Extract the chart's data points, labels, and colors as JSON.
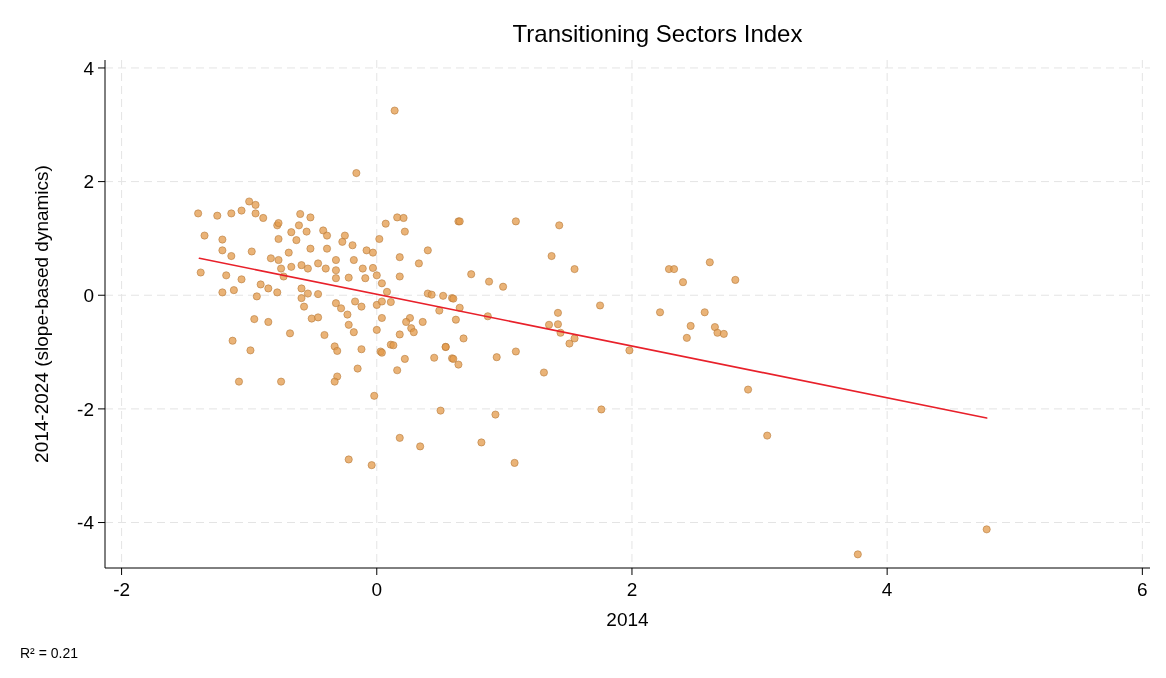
{
  "chart_data": {
    "type": "scatter",
    "title": "Transitioning Sectors Index",
    "xlabel": "2014",
    "ylabel": "2014-2024 (slope-based dynamics)",
    "annotations": [
      "R² = 0.21"
    ],
    "xlim": [
      -2.13,
      6.06
    ],
    "xticks": [
      -2,
      0,
      2,
      4,
      6
    ],
    "ylim": [
      -4.8,
      4.14
    ],
    "yticks": [
      -4,
      -2,
      0,
      2,
      4
    ],
    "grid": true,
    "marker": "circle",
    "series": [
      {
        "color": "#e39a4a",
        "x": [
          -1.4,
          -1.25,
          -1.14,
          -1.06,
          -1.0,
          -0.95,
          -0.95,
          -0.89,
          -1.35,
          -1.21,
          -1.21,
          -1.38,
          -1.18,
          -1.14,
          -1.06,
          -0.98,
          -1.21,
          -1.12,
          -0.91,
          -0.94,
          -0.85,
          -0.78,
          -0.83,
          -0.77,
          -0.77,
          -0.78,
          -0.77,
          -0.67,
          -0.6,
          -0.52,
          -0.61,
          -0.63,
          -0.55,
          -0.69,
          -0.52,
          -0.67,
          -0.59,
          -0.54,
          -0.75,
          -0.73,
          -0.46,
          -0.4,
          -0.42,
          -0.39,
          -0.39,
          -0.32,
          -0.32,
          -0.32,
          -0.25,
          -0.27,
          -0.19,
          -0.22,
          -0.18,
          -0.08,
          -0.03,
          -0.11,
          -0.03,
          -0.09,
          0.0,
          0.02,
          -0.59,
          -0.59,
          -0.57,
          -0.54,
          -0.46,
          -0.32,
          -0.28,
          -0.23,
          -0.22,
          -0.18,
          -0.17,
          -0.12,
          0.0,
          0.0,
          -0.96,
          -0.85,
          -0.68,
          -0.51,
          -0.46,
          -0.41,
          -1.13,
          -0.99,
          -0.33,
          -0.31,
          -0.12,
          -0.15,
          0.03,
          -1.08,
          -0.75,
          -0.31,
          -0.33,
          0.14,
          -0.16,
          -0.02,
          0.5,
          0.18,
          0.34,
          -0.22,
          -0.04,
          0.16,
          0.21,
          0.22,
          0.07,
          0.18,
          0.18,
          0.33,
          0.4,
          0.64,
          0.4,
          0.43,
          0.52,
          0.59,
          0.62,
          0.04,
          0.08,
          0.04,
          0.11,
          0.04,
          0.18,
          0.26,
          0.27,
          0.23,
          0.36,
          0.29,
          0.11,
          0.13,
          0.22,
          0.04,
          0.16,
          0.45,
          0.54,
          0.59,
          0.64,
          0.65,
          1.09,
          1.43,
          1.37,
          1.55,
          0.74,
          0.88,
          0.99,
          0.6,
          0.49,
          0.65,
          0.87,
          1.42,
          1.35,
          1.42,
          1.44,
          1.51,
          1.55,
          1.75,
          1.98,
          0.68,
          0.54,
          0.6,
          0.94,
          1.09,
          1.31,
          0.93,
          1.76,
          0.82,
          1.08,
          2.29,
          2.33,
          2.61,
          2.4,
          2.22,
          2.57,
          2.46,
          2.43,
          2.65,
          2.67,
          2.81,
          2.72,
          2.91,
          3.06,
          4.78,
          3.77
        ],
        "values": [
          1.44,
          1.4,
          1.44,
          1.49,
          1.65,
          1.59,
          1.44,
          1.36,
          1.05,
          0.98,
          0.79,
          0.4,
          0.35,
          0.69,
          0.28,
          0.77,
          0.05,
          0.09,
          0.19,
          -0.02,
          0.12,
          0.05,
          0.65,
          0.62,
          0.99,
          1.23,
          1.27,
          1.11,
          1.43,
          1.37,
          1.23,
          0.97,
          1.12,
          0.75,
          0.82,
          0.5,
          0.53,
          0.47,
          0.47,
          0.33,
          0.56,
          0.47,
          1.14,
          1.05,
          0.82,
          0.62,
          0.44,
          0.3,
          1.05,
          0.94,
          0.88,
          0.31,
          0.62,
          0.79,
          0.75,
          0.47,
          0.48,
          0.3,
          0.35,
          0.99,
          0.12,
          -0.05,
          -0.2,
          0.03,
          0.02,
          -0.14,
          -0.23,
          -0.34,
          -0.52,
          -0.65,
          -0.11,
          -0.2,
          -0.17,
          -0.61,
          -0.42,
          -0.47,
          -0.67,
          -0.41,
          -0.39,
          -0.7,
          -0.8,
          -0.97,
          -0.9,
          -0.98,
          -0.95,
          -1.29,
          -0.99,
          -1.52,
          -1.52,
          -1.43,
          -1.52,
          3.25,
          2.15,
          -1.77,
          -2.03,
          -2.51,
          -2.66,
          -2.89,
          -2.99,
          1.37,
          1.36,
          1.12,
          1.26,
          0.67,
          0.33,
          0.56,
          0.79,
          1.3,
          0.03,
          0.01,
          -0.01,
          -0.05,
          -0.43,
          0.21,
          0.06,
          -0.11,
          -0.12,
          -0.4,
          -0.69,
          -0.4,
          -0.58,
          -0.47,
          -0.47,
          -0.65,
          -0.87,
          -0.88,
          -1.12,
          -1.01,
          -1.32,
          -1.1,
          -0.91,
          -1.11,
          -1.22,
          1.3,
          1.3,
          1.23,
          0.69,
          0.46,
          0.37,
          0.24,
          0.15,
          -0.06,
          -0.27,
          -0.22,
          -0.37,
          -0.31,
          -0.52,
          -0.51,
          -0.66,
          -0.85,
          -0.76,
          -0.18,
          -0.97,
          -0.76,
          -0.91,
          -1.12,
          -1.09,
          -0.99,
          -1.36,
          -2.1,
          -2.01,
          -2.59,
          -2.95,
          0.46,
          0.46,
          0.58,
          0.23,
          -0.3,
          -0.3,
          -0.54,
          -0.75,
          -0.56,
          -0.66,
          0.27,
          -0.68,
          -1.66,
          -2.47,
          -4.12,
          -4.56
        ]
      },
      {
        "type": "line",
        "color": "#e8202a",
        "x": [
          -1.39,
          4.78
        ],
        "values": [
          0.65,
          -2.16
        ],
        "marker": "none",
        "line_style": "solid"
      }
    ]
  }
}
